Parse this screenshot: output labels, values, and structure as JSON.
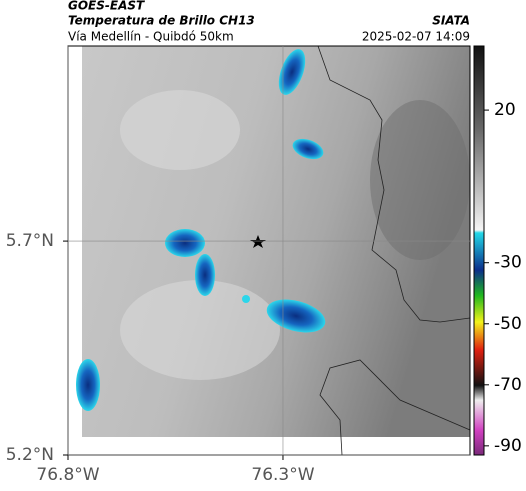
{
  "header": {
    "title": "GOES-EAST",
    "subtitle": "Temperatura de Brillo CH13",
    "region": "Vía Medellín - Quibdó 50km",
    "source": "SIATA",
    "datetime": "2025-02-07 14:09"
  },
  "map": {
    "xlim": [
      -76.8,
      -75.865
    ],
    "ylim": [
      5.2,
      6.156
    ],
    "xticks": [
      {
        "value": -76.8,
        "label": "76.8°W"
      },
      {
        "value": -76.3,
        "label": "76.3°W"
      }
    ],
    "yticks": [
      {
        "value": 5.2,
        "label": "5.2°N"
      },
      {
        "value": 5.7,
        "label": "5.7°N"
      }
    ],
    "grid": true
  },
  "colorbar": {
    "clim": [
      -93,
      41
    ],
    "ticks": [
      20,
      -30,
      -50,
      -70,
      -90
    ]
  }
}
